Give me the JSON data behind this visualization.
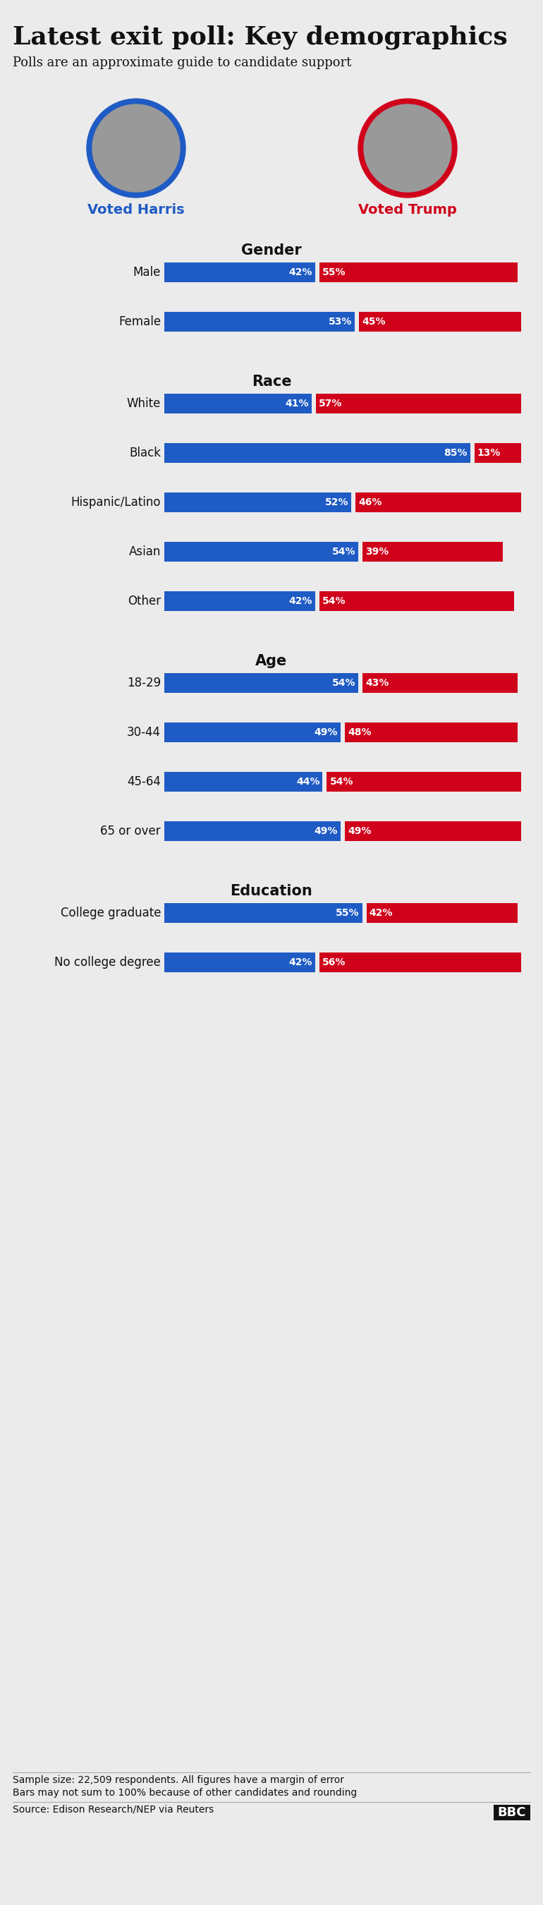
{
  "title": "Latest exit poll: Key demographics",
  "subtitle": "Polls are an approximate guide to candidate support",
  "harris_label": "Voted Harris",
  "trump_label": "Voted Trump",
  "harris_color": "#1f5bc4",
  "trump_color": "#d0021b",
  "background_color": "#ebebeb",
  "categories": [
    {
      "section": "Gender",
      "label": "Male",
      "harris": 42,
      "trump": 55
    },
    {
      "section": "",
      "label": "Female",
      "harris": 53,
      "trump": 45
    },
    {
      "section": "Race",
      "label": "White",
      "harris": 41,
      "trump": 57
    },
    {
      "section": "",
      "label": "Black",
      "harris": 85,
      "trump": 13
    },
    {
      "section": "",
      "label": "Hispanic/Latino",
      "harris": 52,
      "trump": 46
    },
    {
      "section": "",
      "label": "Asian",
      "harris": 54,
      "trump": 39
    },
    {
      "section": "",
      "label": "Other",
      "harris": 42,
      "trump": 54
    },
    {
      "section": "Age",
      "label": "18-29",
      "harris": 54,
      "trump": 43
    },
    {
      "section": "",
      "label": "30-44",
      "harris": 49,
      "trump": 48
    },
    {
      "section": "",
      "label": "45-64",
      "harris": 44,
      "trump": 54
    },
    {
      "section": "",
      "label": "65 or over",
      "harris": 49,
      "trump": 49
    },
    {
      "section": "Education",
      "label": "College graduate",
      "harris": 55,
      "trump": 42
    },
    {
      "section": "",
      "label": "No college degree",
      "harris": 42,
      "trump": 56
    }
  ],
  "footnote1": "Sample size: 22,509 respondents. All figures have a margin of error",
  "footnote2": "Bars may not sum to 100% because of other candidates and rounding",
  "source": "Source: Edison Research/NEP via Reuters",
  "bbc_text": "BBC"
}
